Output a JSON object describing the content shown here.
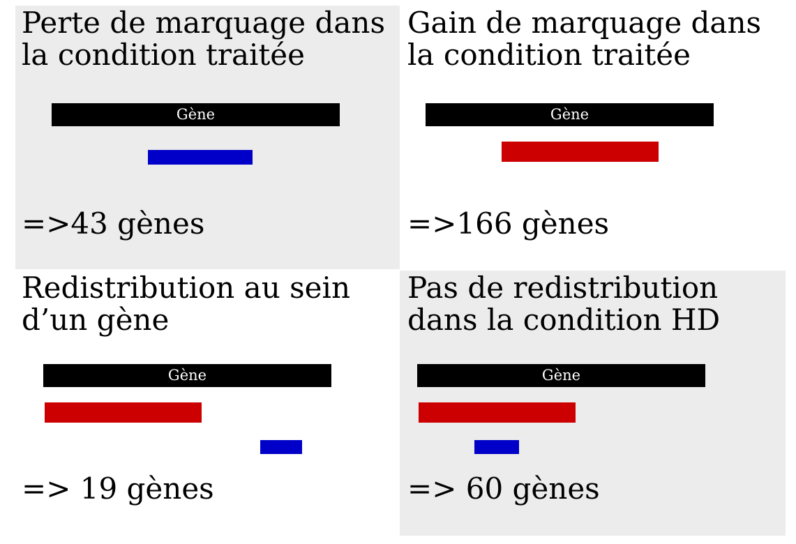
{
  "panels": [
    {
      "title_line1": "Perte de marquage dans",
      "title_line2": "la condition traitée",
      "gene_label": "Gène",
      "count": "=>43 gènes",
      "marks": [
        {
          "color": "blue"
        }
      ]
    },
    {
      "title_line1": "Gain de marquage dans",
      "title_line2": "la condition traitée",
      "gene_label": "Gène",
      "count": "=>166 gènes",
      "marks": [
        {
          "color": "red"
        }
      ]
    },
    {
      "title_line1": "Redistribution au sein",
      "title_line2": "d’un gène",
      "gene_label": "Gène",
      "count": "=> 19 gènes",
      "marks": [
        {
          "color": "red"
        },
        {
          "color": "blue"
        }
      ]
    },
    {
      "title_line1": "Pas de redistribution",
      "title_line2": "dans la condition HD",
      "gene_label": "Gène",
      "count": "=> 60 gènes",
      "marks": [
        {
          "color": "red"
        },
        {
          "color": "blue"
        }
      ]
    }
  ],
  "colors": {
    "gene": "#000000",
    "red": "#cc0000",
    "blue": "#0000c8",
    "shaded_background": "#ececec"
  }
}
